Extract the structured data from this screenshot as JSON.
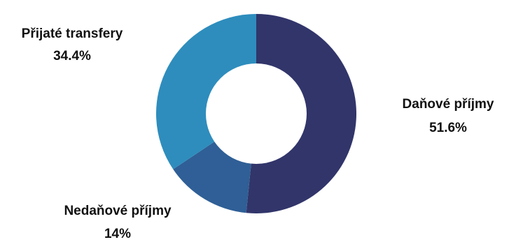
{
  "chart_data": {
    "type": "pie",
    "donut": true,
    "slices": [
      {
        "label": "Daňové příjmy",
        "value": 51.6,
        "value_label": "51.6%",
        "color": "#31356a"
      },
      {
        "label": "Nedaňové příjmy",
        "value": 14,
        "value_label": "14%",
        "color": "#2f5f96"
      },
      {
        "label": "Přijaté transfery",
        "value": 34.4,
        "value_label": "34.4%",
        "color": "#2e8dbd"
      }
    ],
    "legend": "none"
  }
}
